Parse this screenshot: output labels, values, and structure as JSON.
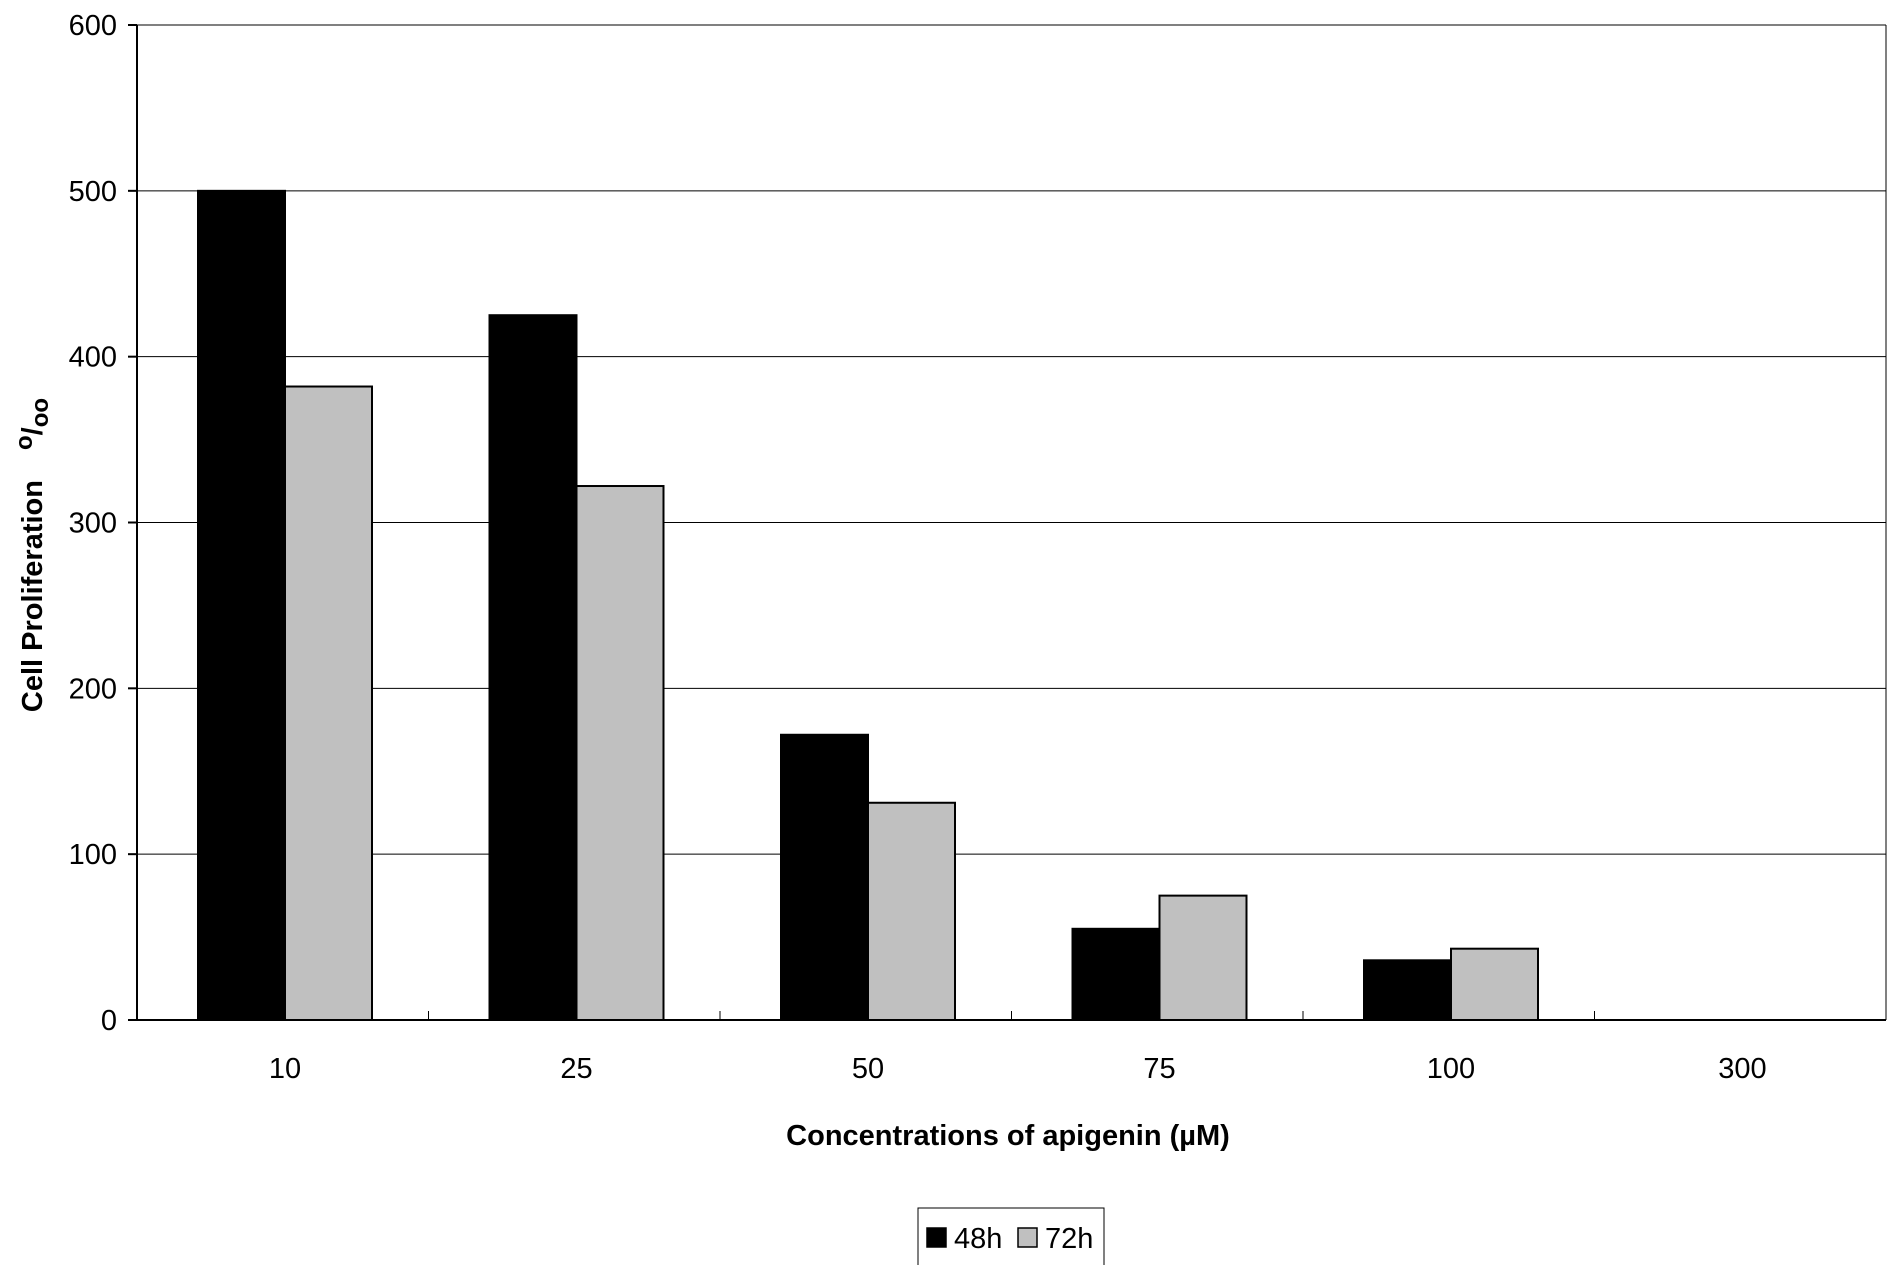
{
  "chart_data": {
    "type": "bar",
    "title": "",
    "xlabel": "Concentrations of apigenin (µM)",
    "ylabel": "Cell Proliferation",
    "ylabel_unit": "o/oo",
    "categories": [
      "10",
      "25",
      "50",
      "75",
      "100",
      "300"
    ],
    "series": [
      {
        "name": "48h",
        "values": [
          500,
          425,
          172,
          55,
          36,
          0
        ],
        "color": "#000000"
      },
      {
        "name": "72h",
        "values": [
          382,
          322,
          131,
          75,
          43,
          0
        ],
        "color": "#c0c0c0"
      }
    ],
    "ylim": [
      0,
      600
    ],
    "yticks": [
      0,
      100,
      200,
      300,
      400,
      500,
      600
    ],
    "grid": true,
    "legend": "bottom-center"
  }
}
